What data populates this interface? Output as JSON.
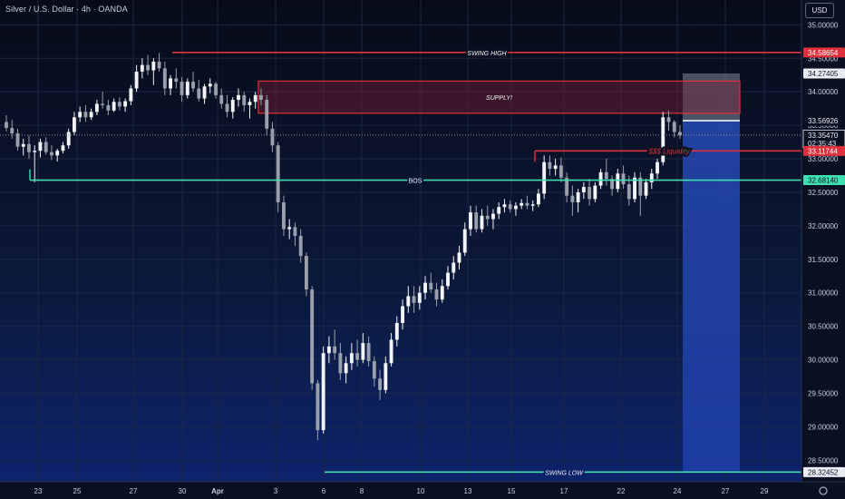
{
  "header": {
    "title": "Silver / U.S. Dollar · 4h · OANDA",
    "unit_label": "USD"
  },
  "colors": {
    "red": "#e0303c",
    "teal": "#3ee0b0",
    "bull": "#f3f4f7",
    "bear": "#9aa0ab",
    "grid": "#1c2740",
    "axis_text": "#c9cfdc",
    "zone_blue": "#2a52c8"
  },
  "chart_data": {
    "type": "candlestick",
    "title": "Silver / U.S. Dollar · 4h · OANDA",
    "y_unit": "USD",
    "ylim": [
      28.18,
      35.37
    ],
    "grid": true,
    "x_tick_labels": [
      "23",
      "25",
      "27",
      "30",
      "Apr",
      "3",
      "6",
      "8",
      "10",
      "13",
      "15",
      "17",
      "22",
      "24",
      "27",
      "29"
    ],
    "y_tick_labels": [
      "35.00000",
      "34.50000",
      "34.00000",
      "33.50000",
      "33.00000",
      "32.50000",
      "32.00000",
      "31.50000",
      "31.00000",
      "30.50000",
      "30.00000",
      "29.50000",
      "29.00000",
      "28.50000"
    ],
    "candles": [
      [
        33.55,
        33.65,
        33.41,
        33.46
      ],
      [
        33.46,
        33.58,
        33.3,
        33.38
      ],
      [
        33.38,
        33.45,
        33.12,
        33.18
      ],
      [
        33.18,
        33.3,
        33.05,
        33.22
      ],
      [
        33.22,
        33.35,
        33.0,
        33.1
      ],
      [
        33.1,
        33.2,
        32.65,
        33.12
      ],
      [
        33.12,
        33.3,
        33.02,
        33.25
      ],
      [
        33.25,
        33.32,
        33.06,
        33.1
      ],
      [
        33.1,
        33.2,
        32.98,
        33.05
      ],
      [
        33.05,
        33.15,
        32.96,
        33.12
      ],
      [
        33.12,
        33.25,
        33.08,
        33.2
      ],
      [
        33.2,
        33.45,
        33.15,
        33.4
      ],
      [
        33.4,
        33.7,
        33.35,
        33.62
      ],
      [
        33.62,
        33.78,
        33.55,
        33.7
      ],
      [
        33.7,
        33.8,
        33.55,
        33.62
      ],
      [
        33.62,
        33.75,
        33.58,
        33.7
      ],
      [
        33.7,
        33.88,
        33.65,
        33.82
      ],
      [
        33.82,
        34.0,
        33.75,
        33.8
      ],
      [
        33.8,
        33.88,
        33.65,
        33.72
      ],
      [
        33.72,
        33.9,
        33.7,
        33.85
      ],
      [
        33.85,
        33.92,
        33.72,
        33.78
      ],
      [
        33.78,
        33.9,
        33.7,
        33.86
      ],
      [
        33.86,
        34.1,
        33.8,
        34.05
      ],
      [
        34.05,
        34.4,
        34.0,
        34.3
      ],
      [
        34.3,
        34.5,
        34.2,
        34.4
      ],
      [
        34.4,
        34.55,
        34.25,
        34.32
      ],
      [
        34.32,
        34.5,
        34.1,
        34.45
      ],
      [
        34.45,
        34.58,
        34.3,
        34.35
      ],
      [
        34.35,
        34.45,
        33.95,
        34.05
      ],
      [
        34.05,
        34.25,
        33.95,
        34.2
      ],
      [
        34.2,
        34.35,
        34.05,
        34.15
      ],
      [
        34.15,
        34.22,
        33.85,
        33.95
      ],
      [
        33.95,
        34.2,
        33.9,
        34.15
      ],
      [
        34.15,
        34.3,
        34.0,
        34.05
      ],
      [
        34.05,
        34.18,
        33.85,
        33.9
      ],
      [
        33.9,
        34.12,
        33.82,
        34.08
      ],
      [
        34.08,
        34.2,
        33.98,
        34.12
      ],
      [
        34.12,
        34.15,
        33.9,
        33.95
      ],
      [
        33.95,
        34.05,
        33.75,
        33.82
      ],
      [
        33.82,
        33.95,
        33.62,
        33.7
      ],
      [
        33.7,
        33.92,
        33.6,
        33.88
      ],
      [
        33.88,
        34.05,
        33.78,
        33.95
      ],
      [
        33.95,
        34.0,
        33.7,
        33.8
      ],
      [
        33.8,
        33.9,
        33.6,
        33.85
      ],
      [
        33.85,
        34.0,
        33.75,
        33.95
      ],
      [
        33.95,
        34.05,
        33.8,
        33.88
      ],
      [
        33.88,
        33.95,
        33.35,
        33.45
      ],
      [
        33.45,
        33.55,
        33.1,
        33.2
      ],
      [
        33.2,
        33.25,
        32.2,
        32.35
      ],
      [
        32.35,
        32.45,
        31.85,
        31.95
      ],
      [
        31.95,
        32.1,
        31.8,
        31.98
      ],
      [
        31.98,
        32.05,
        31.7,
        31.85
      ],
      [
        31.85,
        31.95,
        31.45,
        31.55
      ],
      [
        31.55,
        31.6,
        30.95,
        31.05
      ],
      [
        31.05,
        31.1,
        29.55,
        29.65
      ],
      [
        29.65,
        29.7,
        28.8,
        28.95
      ],
      [
        28.95,
        30.2,
        28.9,
        30.1
      ],
      [
        30.1,
        30.35,
        29.95,
        30.2
      ],
      [
        30.2,
        30.45,
        30.0,
        30.1
      ],
      [
        30.1,
        30.25,
        29.7,
        29.8
      ],
      [
        29.8,
        30.05,
        29.65,
        29.95
      ],
      [
        29.95,
        30.25,
        29.85,
        30.1
      ],
      [
        30.1,
        30.3,
        29.9,
        30.0
      ],
      [
        30.0,
        30.4,
        29.95,
        30.25
      ],
      [
        30.25,
        30.35,
        29.9,
        29.98
      ],
      [
        29.98,
        30.05,
        29.6,
        29.72
      ],
      [
        29.72,
        29.85,
        29.4,
        29.55
      ],
      [
        29.55,
        30.05,
        29.5,
        29.95
      ],
      [
        29.95,
        30.4,
        29.9,
        30.3
      ],
      [
        30.3,
        30.65,
        30.2,
        30.55
      ],
      [
        30.55,
        30.9,
        30.45,
        30.8
      ],
      [
        30.8,
        31.1,
        30.7,
        30.95
      ],
      [
        30.95,
        31.1,
        30.7,
        30.85
      ],
      [
        30.85,
        31.1,
        30.75,
        31.0
      ],
      [
        31.0,
        31.25,
        30.9,
        31.15
      ],
      [
        31.15,
        31.3,
        31.0,
        31.05
      ],
      [
        31.05,
        31.15,
        30.8,
        30.9
      ],
      [
        30.9,
        31.2,
        30.85,
        31.1
      ],
      [
        31.1,
        31.4,
        31.05,
        31.3
      ],
      [
        31.3,
        31.55,
        31.2,
        31.45
      ],
      [
        31.45,
        31.7,
        31.35,
        31.6
      ],
      [
        31.6,
        32.05,
        31.55,
        31.95
      ],
      [
        31.95,
        32.3,
        31.85,
        32.2
      ],
      [
        32.2,
        32.3,
        31.9,
        31.95
      ],
      [
        31.95,
        32.25,
        31.9,
        32.15
      ],
      [
        32.15,
        32.3,
        32.0,
        32.1
      ],
      [
        32.1,
        32.25,
        31.95,
        32.18
      ],
      [
        32.18,
        32.35,
        32.1,
        32.28
      ],
      [
        32.28,
        32.4,
        32.2,
        32.32
      ],
      [
        32.32,
        32.38,
        32.2,
        32.25
      ],
      [
        32.25,
        32.35,
        32.15,
        32.3
      ],
      [
        32.3,
        32.4,
        32.25,
        32.34
      ],
      [
        32.34,
        32.45,
        32.25,
        32.3
      ],
      [
        32.3,
        32.38,
        32.22,
        32.32
      ],
      [
        32.32,
        32.55,
        32.28,
        32.48
      ],
      [
        32.48,
        33.05,
        32.4,
        32.95
      ],
      [
        32.95,
        33.05,
        32.75,
        32.85
      ],
      [
        32.85,
        33.0,
        32.75,
        32.9
      ],
      [
        32.9,
        33.02,
        32.65,
        32.72
      ],
      [
        32.72,
        32.8,
        32.35,
        32.45
      ],
      [
        32.45,
        32.6,
        32.15,
        32.35
      ],
      [
        32.35,
        32.55,
        32.2,
        32.5
      ],
      [
        32.5,
        32.65,
        32.4,
        32.58
      ],
      [
        32.58,
        32.7,
        32.3,
        32.4
      ],
      [
        32.4,
        32.65,
        32.35,
        32.6
      ],
      [
        32.6,
        32.85,
        32.55,
        32.8
      ],
      [
        32.8,
        33.0,
        32.6,
        32.7
      ],
      [
        32.7,
        32.75,
        32.45,
        32.55
      ],
      [
        32.55,
        32.85,
        32.5,
        32.78
      ],
      [
        32.78,
        32.9,
        32.55,
        32.62
      ],
      [
        32.62,
        32.75,
        32.3,
        32.4
      ],
      [
        32.4,
        32.8,
        32.35,
        32.72
      ],
      [
        32.72,
        32.8,
        32.15,
        32.45
      ],
      [
        32.45,
        32.7,
        32.4,
        32.65
      ],
      [
        32.65,
        32.85,
        32.55,
        32.78
      ],
      [
        32.78,
        33.0,
        32.7,
        32.95
      ],
      [
        32.95,
        33.7,
        32.9,
        33.62
      ],
      [
        33.62,
        33.72,
        33.42,
        33.55
      ],
      [
        33.55,
        33.58,
        33.32,
        33.4
      ],
      [
        33.4,
        33.5,
        33.3,
        33.35
      ]
    ],
    "annotations": [
      {
        "label": "SWING HIGH",
        "price": 34.58654,
        "badge": "34.58654",
        "color": "red"
      },
      {
        "label": "SUPPLY!",
        "price_top": 34.16,
        "price_bottom": 33.68,
        "color": "red"
      },
      {
        "label": "$$$ Liquidity",
        "price": 33.11744,
        "badge": "33.11744",
        "color": "red"
      },
      {
        "label": "BOS",
        "price": 32.6814,
        "badge": "32.68140",
        "color": "teal"
      },
      {
        "label": "SWING LOW",
        "price": 28.32452,
        "badge": "28.32452",
        "color": "teal"
      }
    ],
    "short_position": {
      "entry": 33.56926,
      "stop": 34.27405,
      "target": 28.32452
    },
    "price_labels": {
      "current": "33.35470",
      "countdown": "02:35:43",
      "entry": "33.56926",
      "stop": "34.27405"
    }
  }
}
